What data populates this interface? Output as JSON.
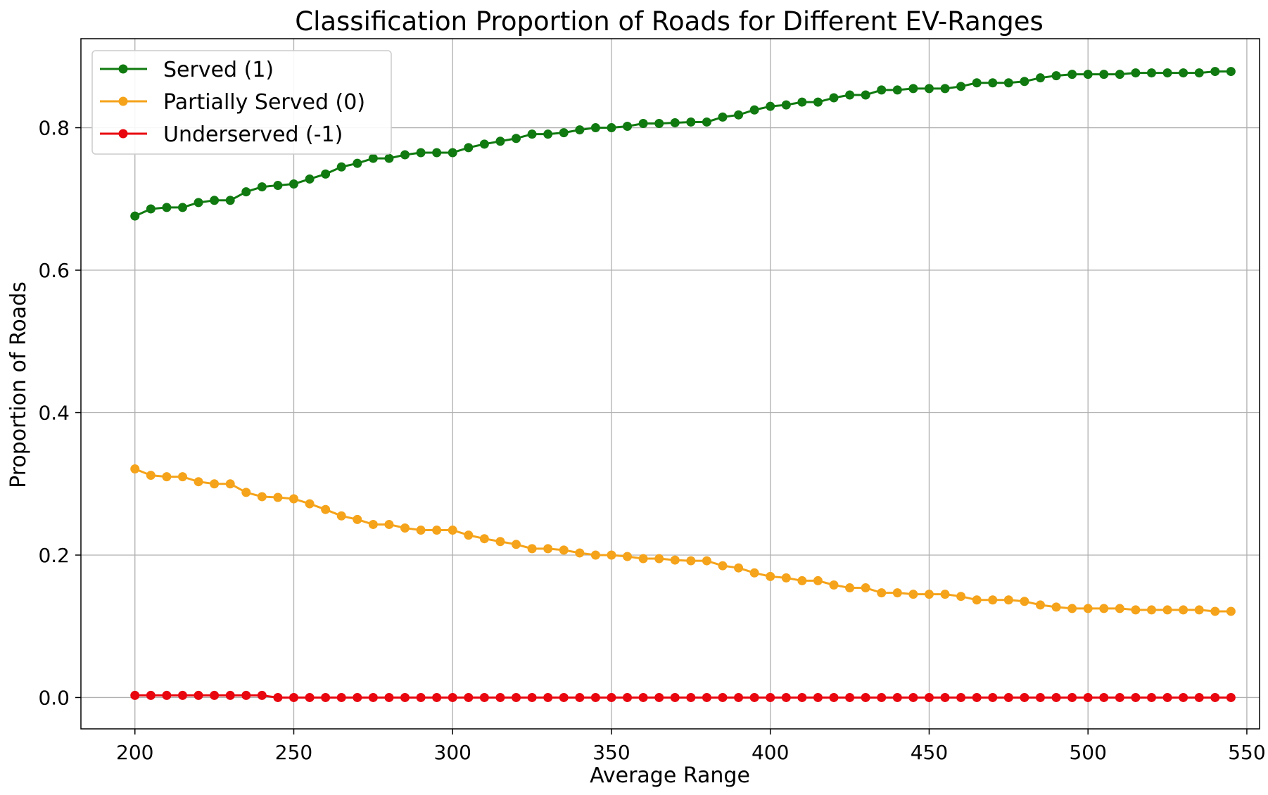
{
  "chart_data": {
    "type": "line",
    "title": "Classification Proportion of Roads for Different EV-Ranges",
    "xlabel": "Average Range",
    "ylabel": "Proportion of Roads",
    "xlim": [
      183,
      554
    ],
    "ylim": [
      -0.044,
      0.925
    ],
    "xticks": [
      200,
      250,
      300,
      350,
      400,
      450,
      500,
      550
    ],
    "yticks": [
      0.0,
      0.2,
      0.4,
      0.6,
      0.8
    ],
    "xtick_labels": [
      "200",
      "250",
      "300",
      "350",
      "400",
      "450",
      "500",
      "550"
    ],
    "ytick_labels": [
      "0.0",
      "0.2",
      "0.4",
      "0.6",
      "0.8"
    ],
    "grid": true,
    "legend_position": "top-left",
    "x": [
      200,
      205,
      210,
      215,
      220,
      225,
      230,
      235,
      240,
      245,
      250,
      255,
      260,
      265,
      270,
      275,
      280,
      285,
      290,
      295,
      300,
      305,
      310,
      315,
      320,
      325,
      330,
      335,
      340,
      345,
      350,
      355,
      360,
      365,
      370,
      375,
      380,
      385,
      390,
      395,
      400,
      405,
      410,
      415,
      420,
      425,
      430,
      435,
      440,
      445,
      450,
      455,
      460,
      465,
      470,
      475,
      480,
      485,
      490,
      495,
      500,
      505,
      510,
      515,
      520,
      525,
      530,
      535,
      540,
      545
    ],
    "series": [
      {
        "name": "Served (1)",
        "color": "#107a10",
        "values": [
          0.676,
          0.686,
          0.688,
          0.688,
          0.695,
          0.698,
          0.698,
          0.71,
          0.717,
          0.719,
          0.721,
          0.728,
          0.735,
          0.745,
          0.75,
          0.757,
          0.757,
          0.762,
          0.765,
          0.765,
          0.765,
          0.772,
          0.777,
          0.781,
          0.785,
          0.791,
          0.791,
          0.793,
          0.797,
          0.8,
          0.8,
          0.802,
          0.806,
          0.806,
          0.807,
          0.808,
          0.808,
          0.815,
          0.818,
          0.825,
          0.83,
          0.832,
          0.836,
          0.836,
          0.842,
          0.846,
          0.846,
          0.853,
          0.853,
          0.855,
          0.855,
          0.855,
          0.858,
          0.863,
          0.863,
          0.863,
          0.865,
          0.87,
          0.873,
          0.875,
          0.875,
          0.875,
          0.875,
          0.877,
          0.877,
          0.877,
          0.877,
          0.877,
          0.879,
          0.879
        ]
      },
      {
        "name": "Partially Served (0)",
        "color": "#f5a31a",
        "values": [
          0.321,
          0.312,
          0.31,
          0.31,
          0.303,
          0.3,
          0.3,
          0.288,
          0.282,
          0.281,
          0.279,
          0.272,
          0.264,
          0.255,
          0.25,
          0.243,
          0.243,
          0.238,
          0.235,
          0.235,
          0.235,
          0.228,
          0.223,
          0.219,
          0.215,
          0.209,
          0.209,
          0.207,
          0.203,
          0.2,
          0.2,
          0.198,
          0.195,
          0.195,
          0.193,
          0.192,
          0.192,
          0.185,
          0.182,
          0.175,
          0.17,
          0.168,
          0.164,
          0.164,
          0.158,
          0.154,
          0.154,
          0.147,
          0.147,
          0.145,
          0.145,
          0.145,
          0.142,
          0.137,
          0.137,
          0.137,
          0.135,
          0.13,
          0.127,
          0.125,
          0.125,
          0.125,
          0.125,
          0.123,
          0.123,
          0.123,
          0.123,
          0.123,
          0.121,
          0.121
        ]
      },
      {
        "name": "Underserved (-1)",
        "color": "#e8070f",
        "values": [
          0.003,
          0.003,
          0.003,
          0.003,
          0.003,
          0.003,
          0.003,
          0.003,
          0.003,
          0.0,
          0.0,
          0.0,
          0.0,
          0.0,
          0.0,
          0.0,
          0.0,
          0.0,
          0.0,
          0.0,
          0.0,
          0.0,
          0.0,
          0.0,
          0.0,
          0.0,
          0.0,
          0.0,
          0.0,
          0.0,
          0.0,
          0.0,
          0.0,
          0.0,
          0.0,
          0.0,
          0.0,
          0.0,
          0.0,
          0.0,
          0.0,
          0.0,
          0.0,
          0.0,
          0.0,
          0.0,
          0.0,
          0.0,
          0.0,
          0.0,
          0.0,
          0.0,
          0.0,
          0.0,
          0.0,
          0.0,
          0.0,
          0.0,
          0.0,
          0.0,
          0.0,
          0.0,
          0.0,
          0.0,
          0.0,
          0.0,
          0.0,
          0.0,
          0.0,
          0.0
        ]
      }
    ]
  }
}
